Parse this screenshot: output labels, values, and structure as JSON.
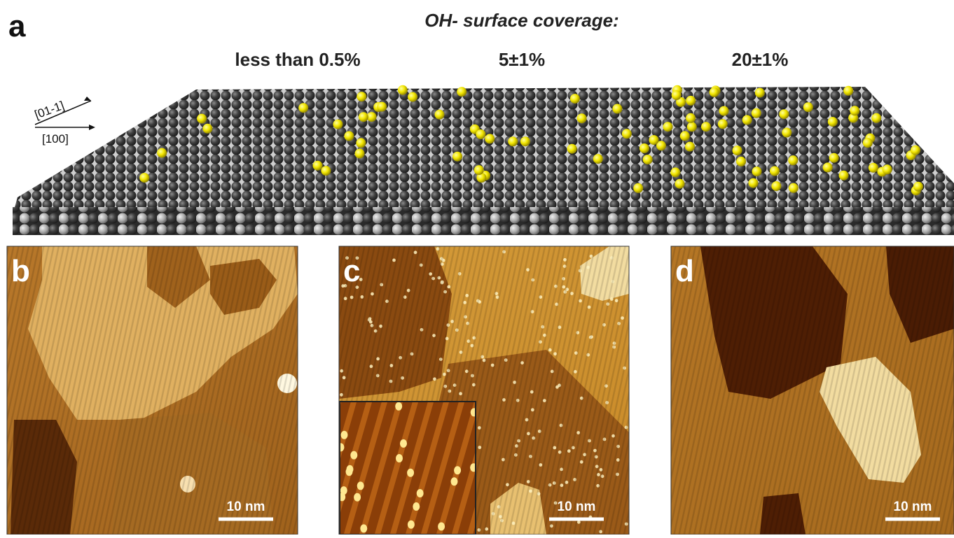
{
  "panel_a": {
    "label": "a",
    "title": "OH- surface coverage:",
    "coverages": [
      "less than 0.5%",
      "5±1%",
      "20±1%"
    ],
    "directions": [
      "[01-1]",
      "[100]"
    ]
  },
  "panels": [
    {
      "label": "b",
      "scale_bar": "10 nm"
    },
    {
      "label": "c",
      "scale_bar": "10 nm"
    },
    {
      "label": "d",
      "scale_bar": "10 nm"
    }
  ]
}
